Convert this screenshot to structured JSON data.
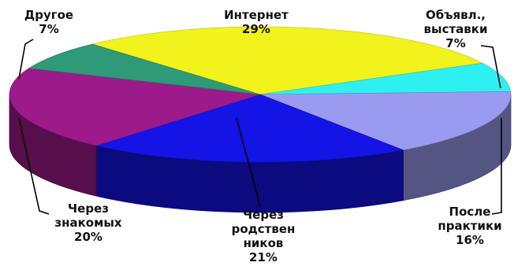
{
  "chart_data": {
    "type": "pie",
    "variant": "3d",
    "title": "",
    "slices": [
      {
        "label": [
          "Интернет"
        ],
        "value": 29,
        "value_label": "29%",
        "color": "#f2f21c"
      },
      {
        "label": [
          "Объявл.,",
          "выставки"
        ],
        "value": 7,
        "value_label": "7%",
        "color": "#2ef0f0"
      },
      {
        "label": [
          "После",
          "практики"
        ],
        "value": 16,
        "value_label": "16%",
        "color": "#9a9af0"
      },
      {
        "label": [
          "Через",
          "родствен",
          "ников"
        ],
        "value": 21,
        "value_label": "21%",
        "color": "#1414e6"
      },
      {
        "label": [
          "Через",
          "знакомых"
        ],
        "value": 20,
        "value_label": "20%",
        "color": "#9c1a8a"
      },
      {
        "label": [
          "Другое"
        ],
        "value": 7,
        "value_label": "7%",
        "color": "#2e9a78"
      }
    ]
  }
}
